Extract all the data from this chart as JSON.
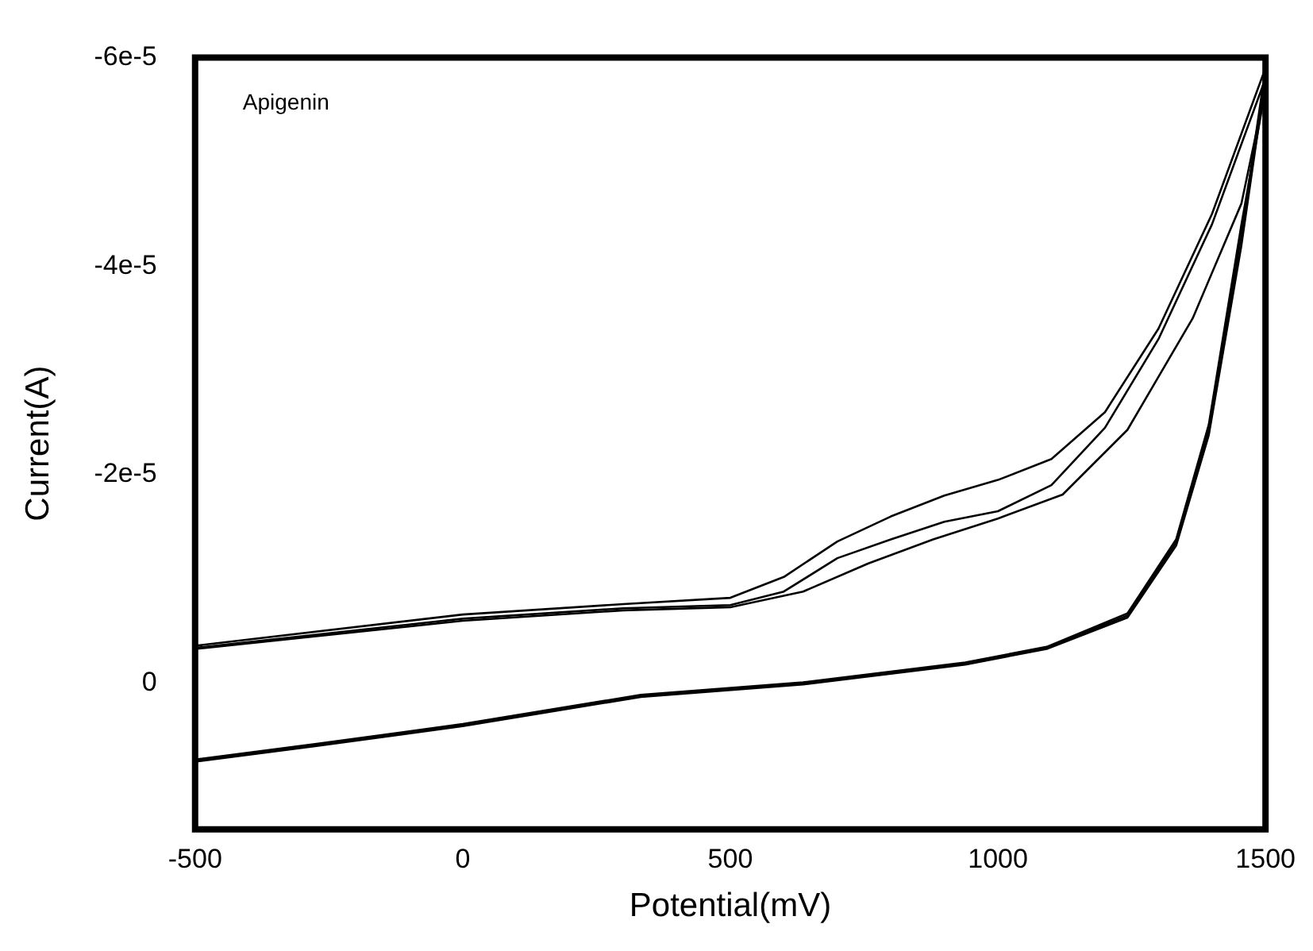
{
  "chart_data": {
    "type": "line",
    "xlabel": "Potential(mV)",
    "ylabel": "Current(A)",
    "annotations": [
      "Apigenin"
    ],
    "grid": false,
    "legend": false,
    "marker": "none",
    "line_style": "solid",
    "xlim": [
      -500,
      1500
    ],
    "xticks": [
      -500,
      0,
      500,
      1000,
      1500
    ],
    "ylim": [
      1.4e-05,
      -6e-05
    ],
    "yticks": [
      {
        "value": -6e-05,
        "label": "-6e-5"
      },
      {
        "value": -4e-05,
        "label": "-4e-5"
      },
      {
        "value": -2e-05,
        "label": "-2e-5"
      },
      0
    ],
    "series": [
      {
        "color": "#000000",
        "x": [
          -500,
          0,
          300,
          500,
          600,
          700,
          800,
          900,
          1000,
          1100,
          1200,
          1300,
          1400,
          1500,
          1455,
          1394,
          1333,
          1242,
          1091,
          939,
          636,
          333,
          0,
          -273,
          -500
        ],
        "values": [
          -3.6e-06,
          -6.6e-06,
          -7.6e-06,
          -8.2e-06,
          -1.02e-05,
          -1.36e-05,
          -1.6e-05,
          -1.8e-05,
          -1.95e-05,
          -2.15e-05,
          -2.6e-05,
          -3.4e-05,
          -4.5e-05,
          -5.9e-05,
          -4.3e-05,
          -2.43e-05,
          -1.35e-05,
          -6.5e-06,
          -3.4e-06,
          -1.9e-06,
          0,
          1.2e-06,
          4e-06,
          5.9e-06,
          7.4e-06
        ]
      },
      {
        "color": "#000000",
        "x": [
          -500,
          0,
          300,
          500,
          600,
          700,
          800,
          900,
          1000,
          1100,
          1200,
          1300,
          1400,
          1500,
          1455,
          1394,
          1333,
          1242,
          1091,
          939,
          636,
          333,
          0,
          -273,
          -500
        ],
        "values": [
          -3.4e-06,
          -6.2e-06,
          -7.2e-06,
          -7.5e-06,
          -8.8e-06,
          -1.2e-05,
          -1.38e-05,
          -1.55e-05,
          -1.65e-05,
          -1.9e-05,
          -2.45e-05,
          -3.3e-05,
          -4.4e-05,
          -5.8e-05,
          -4.2e-05,
          -2.38e-05,
          -1.32e-05,
          -6.3e-06,
          -3.3e-06,
          -1.8e-06,
          1e-07,
          1.3e-06,
          4.1e-06,
          6e-06,
          7.5e-06
        ]
      },
      {
        "color": "#000000",
        "x": [
          -500,
          0,
          300,
          500,
          636,
          758,
          879,
          1000,
          1121,
          1242,
          1364,
          1455,
          1500,
          1455,
          1394,
          1333,
          1242,
          1091,
          939,
          636,
          333,
          0,
          -273,
          -500
        ],
        "values": [
          -3.3e-06,
          -6e-06,
          -7e-06,
          -7.3e-06,
          -8.8e-06,
          -1.15e-05,
          -1.38e-05,
          -1.58e-05,
          -1.81e-05,
          -2.43e-05,
          -3.5e-05,
          -4.6e-05,
          -5.7e-05,
          -4.4e-05,
          -2.48e-05,
          -1.38e-05,
          -6.7e-06,
          -3.5e-06,
          -2e-06,
          -1e-07,
          1.1e-06,
          3.9e-06,
          5.8e-06,
          7.3e-06
        ]
      }
    ]
  }
}
